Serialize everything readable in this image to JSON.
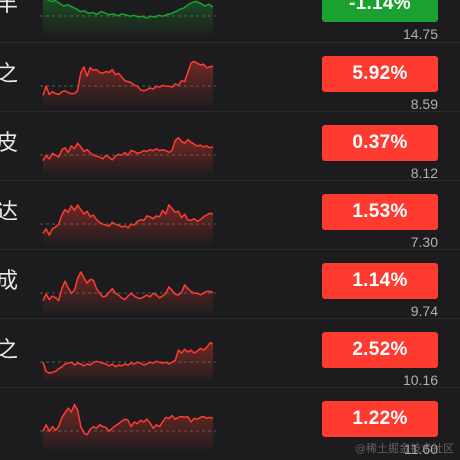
{
  "colors": {
    "up": "#ff3b30",
    "down": "#1aa130",
    "baseline": "#8e8e93"
  },
  "stocks": [
    {
      "name_char": "丰",
      "change": "-1.14%",
      "price": "14.75",
      "trend": "down",
      "spark": [
        0.7,
        0.66,
        0.62,
        0.64,
        0.58,
        0.52,
        0.55,
        0.5,
        0.46,
        0.4,
        0.42,
        0.36,
        0.38,
        0.34,
        0.4,
        0.37,
        0.33,
        0.35,
        0.31,
        0.35,
        0.33,
        0.3,
        0.32,
        0.28,
        0.3,
        0.26,
        0.3,
        0.28,
        0.32,
        0.3,
        0.34,
        0.36,
        0.4,
        0.45,
        0.48,
        0.55,
        0.6,
        0.62,
        0.58,
        0.52,
        0.56,
        0.5
      ]
    },
    {
      "name_char": "之",
      "change": "5.92%",
      "price": "8.59",
      "trend": "up",
      "spark": [
        0.1,
        0.3,
        0.12,
        0.18,
        0.14,
        0.12,
        0.18,
        0.2,
        0.16,
        0.14,
        0.14,
        0.2,
        0.6,
        0.72,
        0.52,
        0.7,
        0.65,
        0.66,
        0.6,
        0.58,
        0.62,
        0.6,
        0.66,
        0.55,
        0.58,
        0.5,
        0.42,
        0.4,
        0.38,
        0.32,
        0.3,
        0.22,
        0.2,
        0.22,
        0.26,
        0.24,
        0.3,
        0.28,
        0.32,
        0.3,
        0.3,
        0.28,
        0.35,
        0.32,
        0.42,
        0.4,
        0.6,
        0.8,
        0.84,
        0.8,
        0.76,
        0.78,
        0.7,
        0.72,
        0.74
      ]
    },
    {
      "name_char": "皮",
      "change": "0.37%",
      "price": "8.12",
      "trend": "up",
      "spark": [
        0.18,
        0.3,
        0.22,
        0.34,
        0.3,
        0.26,
        0.42,
        0.46,
        0.36,
        0.5,
        0.44,
        0.56,
        0.48,
        0.38,
        0.42,
        0.35,
        0.3,
        0.28,
        0.26,
        0.22,
        0.3,
        0.25,
        0.2,
        0.28,
        0.32,
        0.3,
        0.36,
        0.3,
        0.4,
        0.38,
        0.34,
        0.36,
        0.4,
        0.38,
        0.42,
        0.4,
        0.44,
        0.4,
        0.42,
        0.4,
        0.36,
        0.4,
        0.62,
        0.68,
        0.6,
        0.56,
        0.64,
        0.58,
        0.54,
        0.5,
        0.52,
        0.48,
        0.5,
        0.46,
        0.48
      ]
    },
    {
      "name_char": "达",
      "change": "1.53%",
      "price": "7.30",
      "trend": "up",
      "spark": [
        0.1,
        0.2,
        0.06,
        0.2,
        0.24,
        0.3,
        0.5,
        0.62,
        0.56,
        0.7,
        0.6,
        0.72,
        0.62,
        0.52,
        0.58,
        0.46,
        0.5,
        0.4,
        0.34,
        0.3,
        0.28,
        0.26,
        0.34,
        0.3,
        0.28,
        0.24,
        0.26,
        0.22,
        0.3,
        0.28,
        0.36,
        0.4,
        0.38,
        0.48,
        0.46,
        0.42,
        0.48,
        0.46,
        0.6,
        0.52,
        0.72,
        0.64,
        0.56,
        0.58,
        0.44,
        0.52,
        0.4,
        0.38,
        0.42,
        0.36,
        0.4,
        0.46,
        0.5,
        0.54,
        0.52
      ]
    },
    {
      "name_char": "成",
      "change": "1.14%",
      "price": "9.74",
      "trend": "up",
      "spark": [
        0.14,
        0.28,
        0.16,
        0.24,
        0.2,
        0.14,
        0.4,
        0.56,
        0.42,
        0.3,
        0.36,
        0.62,
        0.76,
        0.64,
        0.52,
        0.6,
        0.58,
        0.4,
        0.3,
        0.22,
        0.24,
        0.32,
        0.4,
        0.3,
        0.26,
        0.2,
        0.16,
        0.24,
        0.3,
        0.24,
        0.2,
        0.18,
        0.22,
        0.26,
        0.22,
        0.3,
        0.26,
        0.2,
        0.24,
        0.3,
        0.44,
        0.36,
        0.28,
        0.26,
        0.32,
        0.48,
        0.4,
        0.34,
        0.3,
        0.3,
        0.26,
        0.3,
        0.34,
        0.34,
        0.32
      ]
    },
    {
      "name_char": "之",
      "change": "2.52%",
      "price": "10.16",
      "trend": "up",
      "spark": [
        0.3,
        0.1,
        0.06,
        0.08,
        0.1,
        0.16,
        0.2,
        0.26,
        0.28,
        0.3,
        0.24,
        0.28,
        0.26,
        0.22,
        0.26,
        0.24,
        0.3,
        0.32,
        0.3,
        0.28,
        0.26,
        0.22,
        0.26,
        0.2,
        0.24,
        0.22,
        0.26,
        0.24,
        0.28,
        0.26,
        0.3,
        0.28,
        0.24,
        0.26,
        0.3,
        0.28,
        0.32,
        0.3,
        0.28,
        0.3,
        0.26,
        0.3,
        0.34,
        0.56,
        0.5,
        0.58,
        0.52,
        0.56,
        0.5,
        0.54,
        0.6,
        0.56,
        0.62,
        0.72,
        0.7
      ]
    },
    {
      "name_char": "",
      "change": "1.22%",
      "price": "11.60",
      "trend": "up",
      "spark": [
        0.3,
        0.44,
        0.3,
        0.4,
        0.32,
        0.4,
        0.6,
        0.7,
        0.8,
        0.72,
        0.88,
        0.76,
        0.4,
        0.26,
        0.22,
        0.34,
        0.4,
        0.36,
        0.44,
        0.4,
        0.38,
        0.3,
        0.36,
        0.42,
        0.46,
        0.52,
        0.56,
        0.54,
        0.4,
        0.5,
        0.46,
        0.54,
        0.5,
        0.56,
        0.48,
        0.36,
        0.44,
        0.4,
        0.5,
        0.6,
        0.58,
        0.64,
        0.56,
        0.6,
        0.62,
        0.6,
        0.62,
        0.5,
        0.58,
        0.56,
        0.6,
        0.62,
        0.58,
        0.6,
        0.58
      ]
    }
  ],
  "watermark": "@稀土掘金技术社区"
}
